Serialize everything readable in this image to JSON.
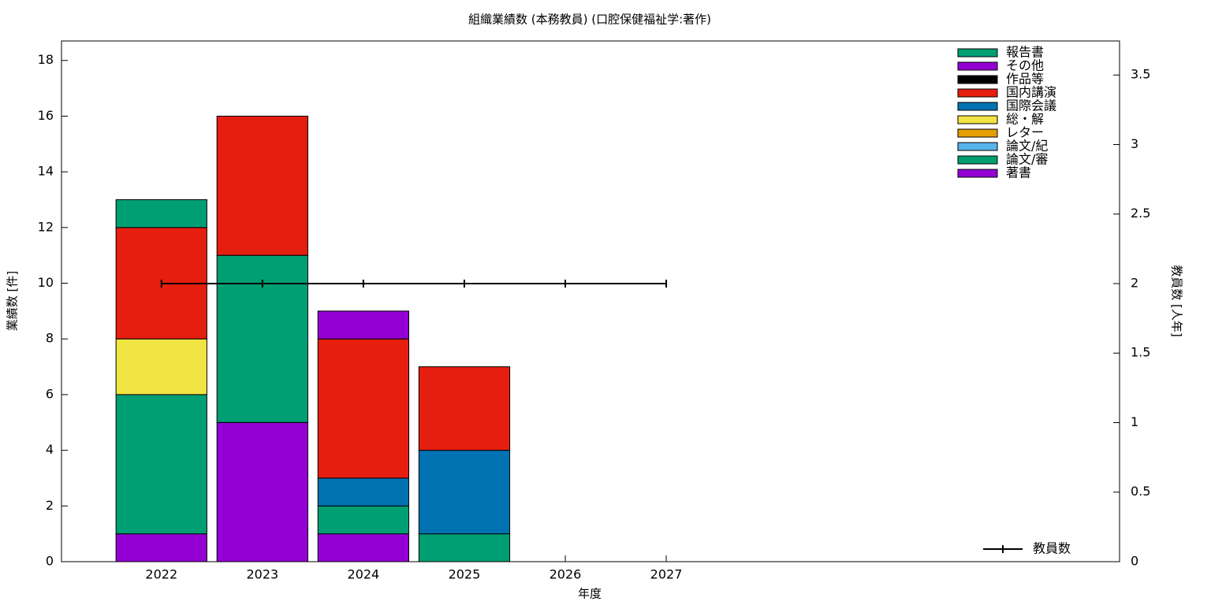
{
  "chart_data": {
    "type": "bar",
    "title": "組織業績数 (本務教員) (口腔保健福祉学:著作)",
    "x_label": "年度",
    "y_label": "業績数 [件]",
    "y2_label": "教員数 [人年]",
    "x": [
      2022,
      2023,
      2024,
      2025,
      2026,
      2027
    ],
    "xlim": [
      2021.01,
      2031.49
    ],
    "xticks": [
      2022,
      2023,
      2024,
      2025,
      2026,
      2027
    ],
    "ylim": [
      0,
      18.7
    ],
    "yticks": [
      0,
      2,
      4,
      6,
      8,
      10,
      12,
      14,
      16,
      18
    ],
    "y2lim": [
      0,
      3.745
    ],
    "y2ticks": [
      0,
      0.5,
      1,
      1.5,
      2,
      2.5,
      3,
      3.5
    ],
    "stacked": true,
    "legend_position": "upper-right",
    "series": [
      {
        "name": "報告書",
        "color": "#009e73",
        "values": [
          1,
          0,
          0,
          0,
          0,
          0
        ]
      },
      {
        "name": "その他",
        "color": "#9400d3",
        "values": [
          0,
          0,
          1,
          0,
          0,
          0
        ]
      },
      {
        "name": "作品等",
        "color": "#000000",
        "values": [
          0,
          0,
          0,
          0,
          0,
          0
        ]
      },
      {
        "name": "国内講演",
        "color": "#e51e10",
        "values": [
          4,
          5,
          5,
          3,
          0,
          0
        ]
      },
      {
        "name": "国際会議",
        "color": "#0072b2",
        "values": [
          0,
          0,
          1,
          3,
          0,
          0
        ]
      },
      {
        "name": "総・解",
        "color": "#f0e442",
        "values": [
          2,
          0,
          0,
          0,
          0,
          0
        ]
      },
      {
        "name": "レター",
        "color": "#e69f00",
        "values": [
          0,
          0,
          0,
          0,
          0,
          0
        ]
      },
      {
        "name": "論文/紀",
        "color": "#56b4e9",
        "values": [
          0,
          0,
          0,
          0,
          0,
          0
        ]
      },
      {
        "name": "論文/審",
        "color": "#009e73",
        "values": [
          5,
          6,
          1,
          1,
          0,
          0
        ]
      },
      {
        "name": "著書",
        "color": "#9400d3",
        "values": [
          1,
          5,
          1,
          0,
          0,
          0
        ]
      }
    ],
    "line_series": {
      "name": "教員数",
      "type": "line",
      "axis": "y2",
      "color": "#000000",
      "values": [
        2,
        2,
        2,
        2,
        2,
        2
      ]
    }
  }
}
